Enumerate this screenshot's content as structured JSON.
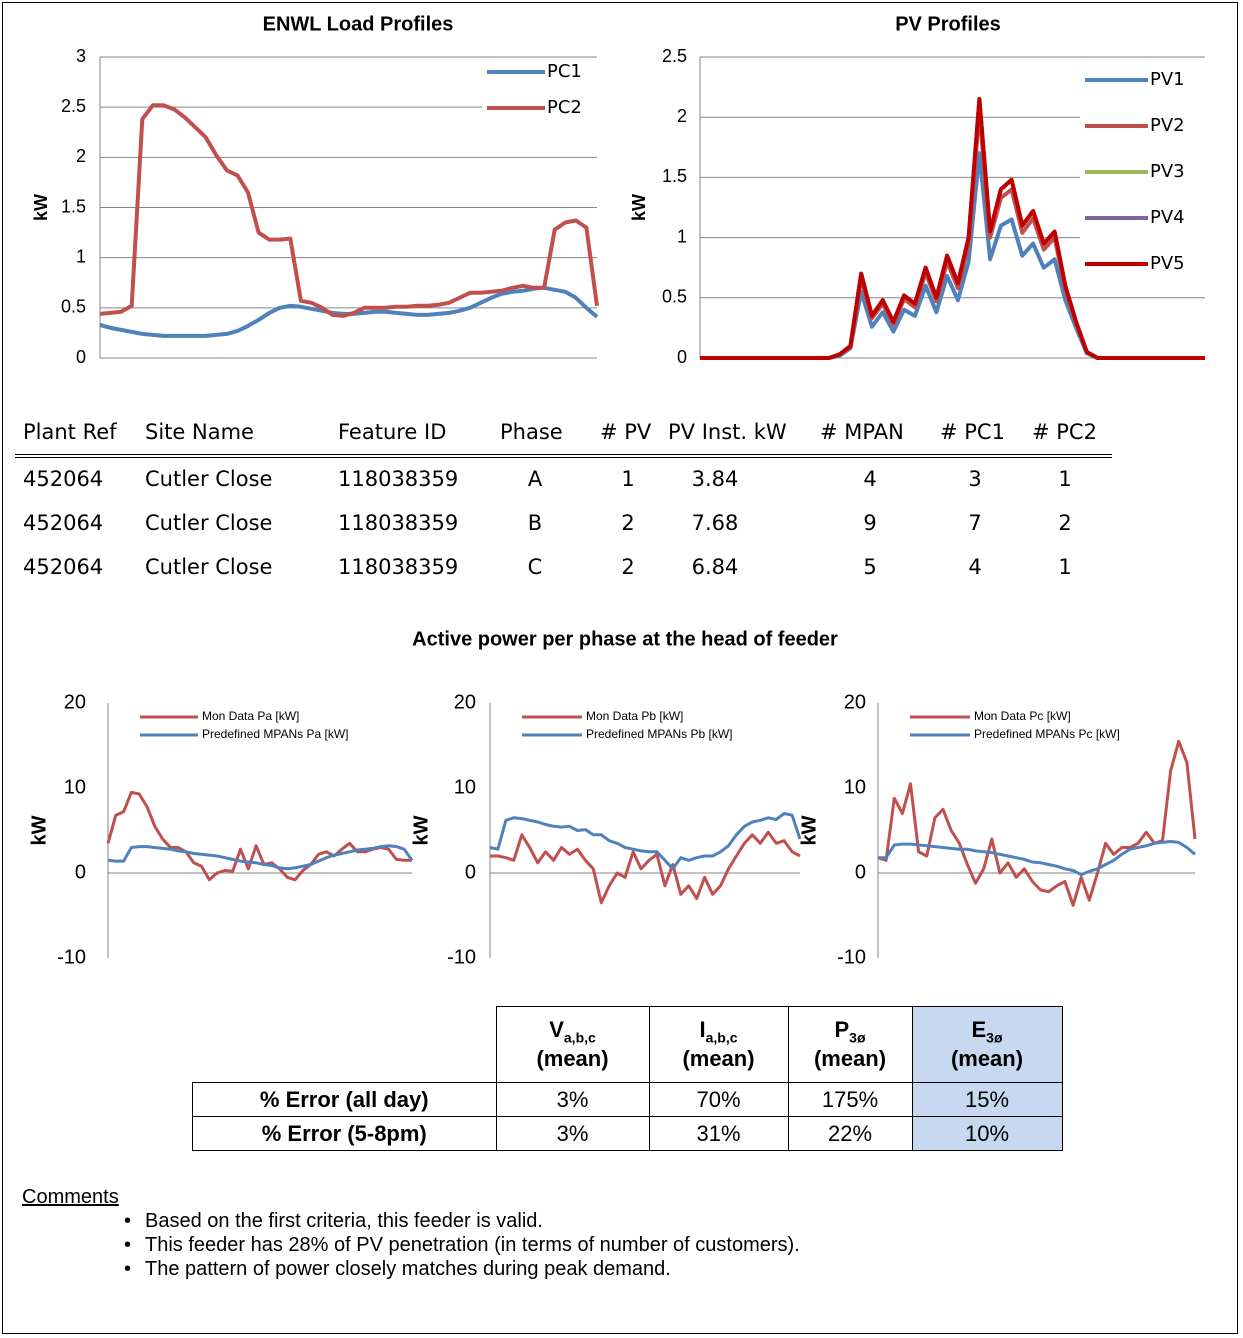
{
  "chart_data": [
    {
      "type": "line",
      "title": "ENWL Load Profiles",
      "y_label": "kW",
      "ylim": [
        0,
        3
      ],
      "yticks": [
        0,
        0.5,
        1,
        1.5,
        2,
        2.5,
        3
      ],
      "grid": true,
      "legend": "top-right",
      "series": [
        {
          "name": "PC1",
          "color": "#4f81bd",
          "values": [
            0.33,
            0.3,
            0.28,
            0.26,
            0.24,
            0.23,
            0.22,
            0.22,
            0.22,
            0.22,
            0.22,
            0.23,
            0.24,
            0.27,
            0.32,
            0.38,
            0.45,
            0.5,
            0.52,
            0.51,
            0.49,
            0.47,
            0.45,
            0.44,
            0.44,
            0.45,
            0.46,
            0.46,
            0.45,
            0.44,
            0.43,
            0.43,
            0.44,
            0.45,
            0.47,
            0.5,
            0.55,
            0.6,
            0.64,
            0.66,
            0.67,
            0.69,
            0.7,
            0.68,
            0.66,
            0.6,
            0.5,
            0.41
          ]
        },
        {
          "name": "PC2",
          "color": "#c0504d",
          "values": [
            0.44,
            0.45,
            0.46,
            0.52,
            2.38,
            2.52,
            2.52,
            2.48,
            2.4,
            2.3,
            2.2,
            2.02,
            1.87,
            1.82,
            1.65,
            1.25,
            1.18,
            1.18,
            1.19,
            0.57,
            0.55,
            0.5,
            0.43,
            0.42,
            0.45,
            0.5,
            0.5,
            0.5,
            0.51,
            0.51,
            0.52,
            0.52,
            0.53,
            0.55,
            0.6,
            0.65,
            0.65,
            0.66,
            0.67,
            0.7,
            0.72,
            0.7,
            0.7,
            1.28,
            1.35,
            1.37,
            1.3,
            0.52
          ]
        }
      ]
    },
    {
      "type": "line",
      "title": "PV Profiles",
      "y_label": "kW",
      "ylim": [
        0,
        2.5
      ],
      "yticks": [
        0,
        0.5,
        1,
        1.5,
        2,
        2.5
      ],
      "grid": true,
      "legend": "right",
      "series": [
        {
          "name": "PV1",
          "color": "#4f81bd",
          "values": [
            0,
            0,
            0,
            0,
            0,
            0,
            0,
            0,
            0,
            0,
            0,
            0,
            0,
            0.02,
            0.08,
            0.55,
            0.26,
            0.38,
            0.22,
            0.4,
            0.35,
            0.6,
            0.38,
            0.68,
            0.48,
            0.8,
            1.7,
            0.82,
            1.1,
            1.15,
            0.85,
            0.95,
            0.75,
            0.82,
            0.48,
            0.25,
            0.04,
            0,
            0,
            0,
            0,
            0,
            0,
            0,
            0,
            0,
            0,
            0
          ]
        },
        {
          "name": "PV2",
          "color": "#c0504d",
          "values": [
            0,
            0,
            0,
            0,
            0,
            0,
            0,
            0,
            0,
            0,
            0,
            0,
            0,
            0.03,
            0.09,
            0.66,
            0.33,
            0.45,
            0.28,
            0.49,
            0.42,
            0.71,
            0.47,
            0.8,
            0.58,
            0.95,
            2.05,
            1.0,
            1.33,
            1.4,
            1.04,
            1.16,
            0.9,
            1.0,
            0.57,
            0.29,
            0.05,
            0,
            0,
            0,
            0,
            0,
            0,
            0,
            0,
            0,
            0,
            0
          ]
        },
        {
          "name": "PV3",
          "color": "#9bbb59",
          "values": [
            0,
            0,
            0,
            0,
            0,
            0,
            0,
            0,
            0,
            0,
            0,
            0,
            0,
            0.03,
            0.1,
            0.7,
            0.35,
            0.48,
            0.3,
            0.52,
            0.45,
            0.75,
            0.5,
            0.85,
            0.62,
            1.0,
            2.15,
            1.05,
            1.4,
            1.48,
            1.1,
            1.22,
            0.95,
            1.05,
            0.6,
            0.3,
            0.05,
            0,
            0,
            0,
            0,
            0,
            0,
            0,
            0,
            0,
            0,
            0
          ]
        },
        {
          "name": "PV4",
          "color": "#8064a2",
          "values": [
            0,
            0,
            0,
            0,
            0,
            0,
            0,
            0,
            0,
            0,
            0,
            0,
            0,
            0.03,
            0.1,
            0.7,
            0.35,
            0.48,
            0.3,
            0.52,
            0.45,
            0.75,
            0.5,
            0.85,
            0.62,
            1.0,
            2.15,
            1.05,
            1.4,
            1.48,
            1.1,
            1.22,
            0.95,
            1.05,
            0.6,
            0.3,
            0.05,
            0,
            0,
            0,
            0,
            0,
            0,
            0,
            0,
            0,
            0,
            0
          ]
        },
        {
          "name": "PV5",
          "color": "#c00000",
          "values": [
            0,
            0,
            0,
            0,
            0,
            0,
            0,
            0,
            0,
            0,
            0,
            0,
            0,
            0.03,
            0.1,
            0.7,
            0.35,
            0.48,
            0.3,
            0.52,
            0.45,
            0.75,
            0.5,
            0.85,
            0.62,
            1.0,
            2.15,
            1.05,
            1.4,
            1.48,
            1.1,
            1.22,
            0.95,
            1.05,
            0.6,
            0.3,
            0.05,
            0,
            0,
            0,
            0,
            0,
            0,
            0,
            0,
            0,
            0,
            0
          ]
        }
      ]
    },
    {
      "type": "line",
      "y_label": "kW",
      "ylim": [
        -10,
        20
      ],
      "yticks": [
        -10,
        0,
        10,
        20
      ],
      "grid": false,
      "legend": "top",
      "series": [
        {
          "name": "Mon Data Pa [kW]",
          "color": "#c0504d",
          "values": [
            3.5,
            6.8,
            7.2,
            9.5,
            9.3,
            7.8,
            5.5,
            4.0,
            3.0,
            3.0,
            2.5,
            1.2,
            0.8,
            -0.8,
            0.0,
            0.3,
            0.2,
            2.8,
            0.5,
            3.2,
            1.0,
            1.2,
            0.5,
            -0.5,
            -0.8,
            0.3,
            1.0,
            2.2,
            2.5,
            2.0,
            2.8,
            3.5,
            2.5,
            2.5,
            2.8,
            3.0,
            2.8,
            1.6,
            1.5,
            1.5
          ]
        },
        {
          "name": "Predefined MPANs Pa [kW]",
          "color": "#4f81bd",
          "values": [
            1.5,
            1.4,
            1.4,
            3.0,
            3.1,
            3.1,
            3.0,
            2.9,
            2.8,
            2.6,
            2.5,
            2.3,
            2.2,
            2.1,
            2.0,
            1.8,
            1.6,
            1.4,
            1.3,
            1.2,
            1.0,
            0.9,
            0.6,
            0.5,
            0.6,
            0.8,
            1.0,
            1.4,
            1.8,
            2.1,
            2.3,
            2.5,
            2.7,
            2.8,
            2.9,
            3.1,
            3.2,
            3.1,
            2.8,
            1.5
          ]
        }
      ]
    },
    {
      "type": "line",
      "y_label": "kW",
      "ylim": [
        -10,
        20
      ],
      "yticks": [
        -10,
        0,
        10,
        20
      ],
      "grid": false,
      "legend": "top",
      "series": [
        {
          "name": "Mon Data Pb [kW]",
          "color": "#c0504d",
          "values": [
            2.0,
            2.0,
            1.8,
            1.5,
            4.5,
            3.0,
            1.2,
            2.5,
            1.5,
            3.0,
            2.2,
            2.8,
            1.5,
            0.5,
            -3.5,
            -1.5,
            0.0,
            -0.5,
            2.5,
            0.5,
            1.5,
            2.2,
            -1.5,
            1.0,
            -2.5,
            -1.5,
            -3.0,
            -0.5,
            -2.5,
            -1.5,
            0.5,
            2.0,
            3.5,
            4.5,
            3.5,
            4.8,
            3.5,
            3.8,
            2.5,
            2.0
          ]
        },
        {
          "name": "Predefined MPANs Pb [kW]",
          "color": "#4f81bd",
          "values": [
            3.0,
            2.8,
            6.2,
            6.5,
            6.4,
            6.2,
            6.0,
            5.7,
            5.5,
            5.4,
            5.5,
            5.0,
            5.1,
            4.5,
            4.5,
            3.8,
            3.5,
            3.0,
            2.8,
            2.6,
            2.5,
            2.5,
            1.5,
            0.5,
            1.8,
            1.5,
            1.8,
            2.0,
            2.0,
            2.5,
            3.2,
            4.5,
            5.5,
            6.0,
            6.2,
            6.5,
            6.3,
            7.0,
            6.8,
            4.0
          ]
        }
      ]
    },
    {
      "type": "line",
      "y_label": "kW",
      "ylim": [
        -10,
        20
      ],
      "yticks": [
        -10,
        0,
        10,
        20
      ],
      "grid": false,
      "legend": "top",
      "series": [
        {
          "name": "Mon Data Pc [kW]",
          "color": "#c0504d",
          "values": [
            1.8,
            1.5,
            8.8,
            7.0,
            10.5,
            2.5,
            2.0,
            6.5,
            7.5,
            5.0,
            3.5,
            1.0,
            -1.2,
            0.5,
            4.0,
            0.0,
            1.2,
            -0.5,
            0.5,
            -1.0,
            -2.0,
            -2.2,
            -1.5,
            -1.0,
            -3.8,
            -0.5,
            -3.2,
            0.0,
            3.5,
            2.2,
            3.0,
            3.0,
            3.5,
            4.8,
            3.5,
            3.8,
            12.0,
            15.5,
            13.0,
            4.0
          ]
        },
        {
          "name": "Predefined MPANs Pc [kW]",
          "color": "#4f81bd",
          "values": [
            1.8,
            1.8,
            3.3,
            3.4,
            3.4,
            3.3,
            3.2,
            3.1,
            3.0,
            2.9,
            2.8,
            2.8,
            2.6,
            2.5,
            2.4,
            2.2,
            2.0,
            1.8,
            1.6,
            1.3,
            1.2,
            1.0,
            0.8,
            0.5,
            0.3,
            -0.2,
            0.2,
            0.5,
            1.0,
            1.5,
            2.2,
            2.8,
            3.0,
            3.2,
            3.5,
            3.6,
            3.7,
            3.6,
            3.0,
            2.2
          ]
        }
      ]
    }
  ],
  "feeder_table": {
    "headers": [
      "Plant Ref",
      "Site Name",
      "Feature ID",
      "Phase",
      "# PV",
      "PV Inst. kW",
      "# MPAN",
      "# PC1",
      "# PC2"
    ],
    "rows": [
      [
        "452064",
        "Cutler Close",
        "118038359",
        "A",
        "1",
        "3.84",
        "4",
        "3",
        "1"
      ],
      [
        "452064",
        "Cutler Close",
        "118038359",
        "B",
        "2",
        "7.68",
        "9",
        "7",
        "2"
      ],
      [
        "452064",
        "Cutler Close",
        "118038359",
        "C",
        "2",
        "6.84",
        "5",
        "4",
        "1"
      ]
    ]
  },
  "phase_section_title": "Active power per phase at the head of feeder",
  "error_table": {
    "headers": [
      {
        "symbol": "V",
        "subscript": "a,b,c",
        "note": "(mean)"
      },
      {
        "symbol": "I",
        "subscript": "a,b,c",
        "note": "(mean)"
      },
      {
        "symbol": "P",
        "subscript": "3ø",
        "note": "(mean)"
      },
      {
        "symbol": "E",
        "subscript": "3ø",
        "note": "(mean)"
      }
    ],
    "rows": [
      {
        "label": "% Error (all day)",
        "values": [
          "3%",
          "70%",
          "175%",
          "15%"
        ]
      },
      {
        "label": "% Error (5-8pm)",
        "values": [
          "3%",
          "31%",
          "22%",
          "10%"
        ]
      }
    ]
  },
  "comments": {
    "title": "Comments",
    "items": [
      "Based on the first criteria, this feeder is valid.",
      "This feeder has 28% of PV penetration (in terms of number of customers).",
      "The pattern of power closely matches during peak demand."
    ]
  }
}
